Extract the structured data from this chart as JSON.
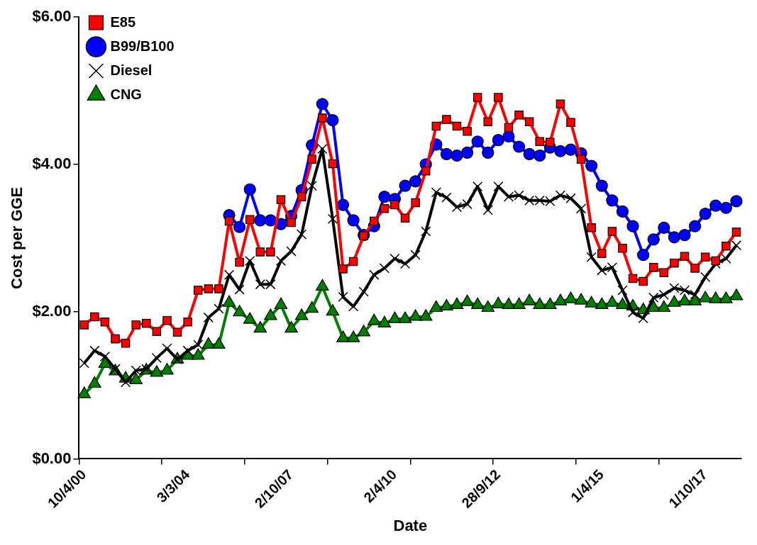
{
  "chart_data": {
    "type": "line",
    "xlabel": "Date",
    "ylabel": "Cost per GGE",
    "categories": [
      "10/4/00",
      null,
      null,
      null,
      null,
      null,
      null,
      null,
      null,
      null,
      "3/3/04",
      null,
      null,
      null,
      null,
      null,
      null,
      null,
      null,
      null,
      "2/10/07",
      null,
      null,
      null,
      null,
      null,
      null,
      null,
      null,
      null,
      "2/4/10",
      null,
      null,
      null,
      null,
      null,
      null,
      null,
      null,
      null,
      "28/9/12",
      null,
      null,
      null,
      null,
      null,
      null,
      null,
      null,
      null,
      "1/4/15",
      null,
      null,
      null,
      null,
      null,
      null,
      null,
      null,
      null,
      "1/10/17",
      null,
      null,
      null
    ],
    "series": [
      {
        "name": "E85",
        "color": "#ff0000",
        "marker": "square",
        "values": [
          1.82,
          1.93,
          1.86,
          1.63,
          1.57,
          1.82,
          1.84,
          1.73,
          1.88,
          1.72,
          1.86,
          2.29,
          2.31,
          2.31,
          3.23,
          2.67,
          3.25,
          2.81,
          2.81,
          3.52,
          3.21,
          3.56,
          4.07,
          4.63,
          4.01,
          2.58,
          2.68,
          3.03,
          3.23,
          3.4,
          3.45,
          3.27,
          3.48,
          3.91,
          4.52,
          4.61,
          4.52,
          4.45,
          4.91,
          4.58,
          4.91,
          4.5,
          4.67,
          4.58,
          4.31,
          4.3,
          4.82,
          4.57,
          4.07,
          3.14,
          2.79,
          3.09,
          2.86,
          2.45,
          2.41,
          2.6,
          2.53,
          2.66,
          2.75,
          2.59,
          2.74,
          2.69,
          2.89,
          3.08
        ]
      },
      {
        "name": "B99/B100",
        "color": "#0000ff",
        "marker": "circle",
        "values": [
          null,
          null,
          null,
          null,
          null,
          null,
          null,
          null,
          null,
          null,
          null,
          null,
          null,
          null,
          3.31,
          3.15,
          3.66,
          3.24,
          3.24,
          3.19,
          3.3,
          3.65,
          4.26,
          4.82,
          4.6,
          3.45,
          3.24,
          3.04,
          3.16,
          3.56,
          3.53,
          3.71,
          3.77,
          4.0,
          4.27,
          4.14,
          4.12,
          4.16,
          4.31,
          4.16,
          4.33,
          4.38,
          4.24,
          4.14,
          4.12,
          4.23,
          4.18,
          4.2,
          4.15,
          3.98,
          3.71,
          3.51,
          3.36,
          3.16,
          2.77,
          2.98,
          3.14,
          3.01,
          3.04,
          3.16,
          3.33,
          3.44,
          3.41,
          3.5
        ]
      },
      {
        "name": "Diesel",
        "color": "#000000",
        "marker": "cross",
        "values": [
          1.3,
          1.47,
          1.39,
          1.22,
          1.04,
          1.2,
          1.22,
          1.37,
          1.5,
          1.35,
          1.47,
          1.55,
          1.92,
          2.04,
          2.5,
          2.3,
          2.69,
          2.37,
          2.37,
          2.69,
          2.82,
          3.05,
          3.71,
          4.21,
          3.26,
          2.2,
          2.07,
          2.27,
          2.5,
          2.59,
          2.72,
          2.65,
          2.77,
          3.09,
          3.62,
          3.55,
          3.42,
          3.46,
          3.7,
          3.38,
          3.7,
          3.56,
          3.58,
          3.51,
          3.51,
          3.5,
          3.58,
          3.54,
          3.4,
          2.74,
          2.56,
          2.6,
          2.29,
          1.99,
          1.91,
          2.19,
          2.23,
          2.32,
          2.29,
          2.23,
          2.47,
          2.65,
          2.72,
          2.9
        ]
      },
      {
        "name": "CNG",
        "color": "#008000",
        "marker": "triangle",
        "values": [
          0.88,
          1.02,
          1.29,
          1.19,
          1.09,
          1.07,
          1.2,
          1.17,
          1.2,
          1.35,
          1.4,
          1.4,
          1.55,
          1.55,
          2.12,
          1.99,
          1.89,
          1.77,
          1.94,
          2.09,
          1.77,
          1.94,
          2.04,
          2.34,
          2.0,
          1.64,
          1.64,
          1.72,
          1.87,
          1.84,
          1.9,
          1.9,
          1.93,
          1.93,
          2.05,
          2.07,
          2.09,
          2.13,
          2.09,
          2.05,
          2.1,
          2.09,
          2.09,
          2.14,
          2.09,
          2.09,
          2.14,
          2.17,
          2.15,
          2.11,
          2.09,
          2.12,
          2.09,
          2.07,
          2.02,
          2.05,
          2.05,
          2.12,
          2.14,
          2.14,
          2.18,
          2.17,
          2.17,
          2.21
        ]
      }
    ],
    "ylim": [
      0,
      6
    ],
    "yticks": [
      {
        "value": 0,
        "label": "$0.00"
      },
      {
        "value": 2,
        "label": "$2.00"
      },
      {
        "value": 4,
        "label": "$4.00"
      },
      {
        "value": 6,
        "label": "$6.00"
      }
    ],
    "grid": false,
    "legend": "top left"
  }
}
